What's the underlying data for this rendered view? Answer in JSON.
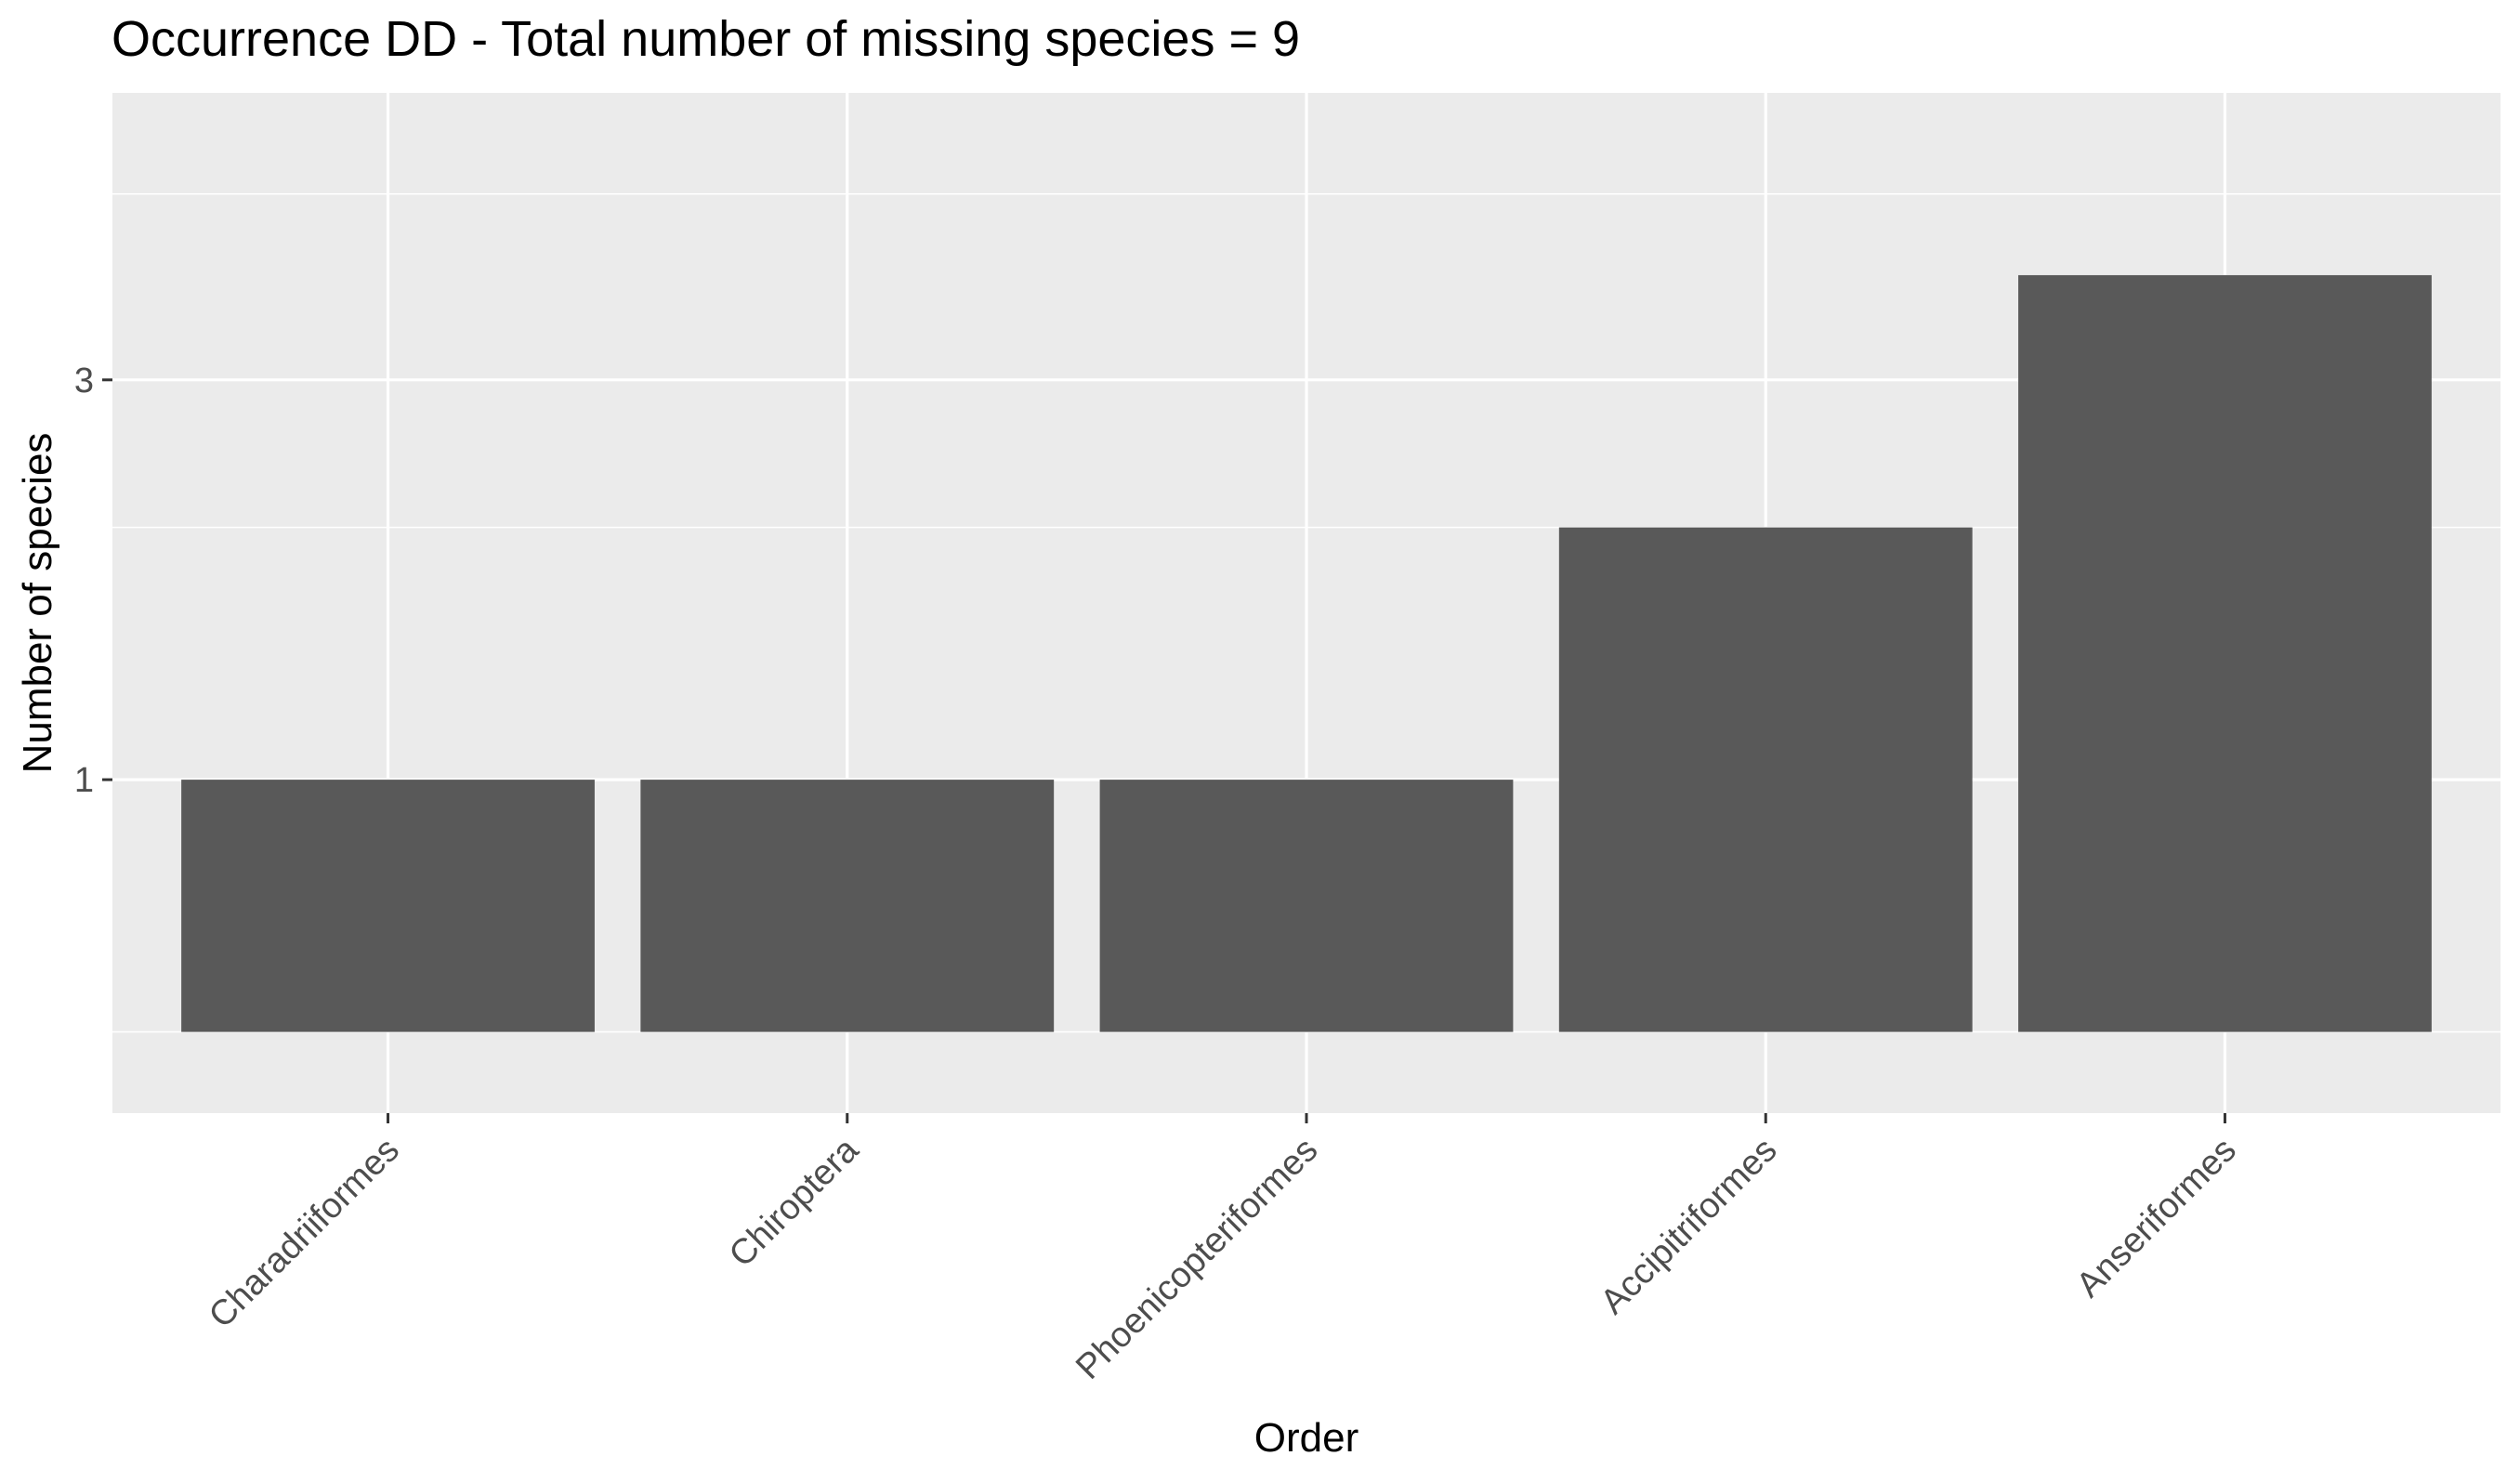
{
  "chart_data": {
    "type": "bar",
    "title": "Occurrence DD - Total number of missing species = 9",
    "xlabel": "Order",
    "ylabel": "Number of species",
    "categories": [
      "Charadriiformes",
      "Chiroptera",
      "Phoenicopteriformes",
      "Accipitriformes",
      "Anseriformes"
    ],
    "values": [
      1,
      1,
      1,
      2,
      4
    ],
    "y_scale": "log2",
    "y_ticks": [
      1,
      3
    ],
    "y_tick_labels": [
      "1",
      "3"
    ],
    "ylim": [
      0.4,
      6.6
    ],
    "grid": true,
    "legend": "none",
    "colors": {
      "bar": "#595959",
      "panel": "#ebebeb",
      "grid": "#ffffff",
      "tick_label": "#4d4d4d",
      "tick": "#333333"
    }
  }
}
